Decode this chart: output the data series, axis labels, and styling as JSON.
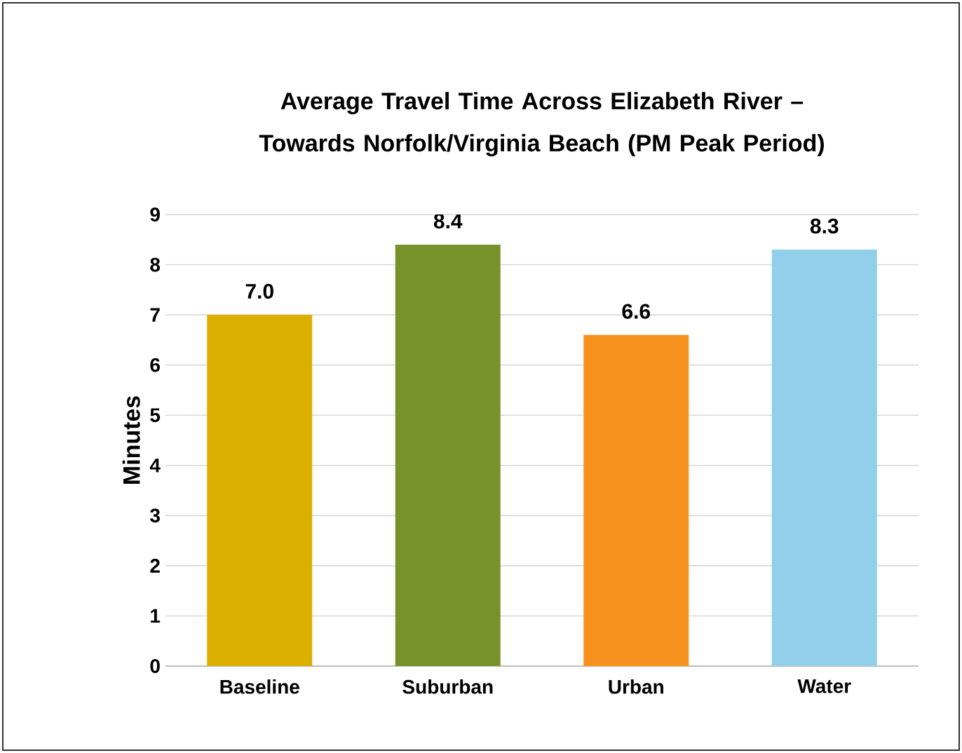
{
  "chart_data": {
    "type": "bar",
    "title": "Average Travel Time Across Elizabeth River – Towards Norfolk/Virginia Beach (PM Peak Period)",
    "ylabel": "Minutes",
    "categories": [
      "Baseline",
      "Suburban",
      "Urban",
      "Water"
    ],
    "values": [
      7.0,
      8.4,
      6.6,
      8.3
    ],
    "value_labels": [
      "7.0",
      "8.4",
      "6.6",
      "8.3"
    ],
    "colors": [
      "#dbb000",
      "#77922a",
      "#f7921e",
      "#92cfea"
    ],
    "ylim": [
      0,
      9
    ],
    "yticks": [
      0,
      1,
      2,
      3,
      4,
      5,
      6,
      7,
      8,
      9
    ],
    "grid": "y"
  }
}
